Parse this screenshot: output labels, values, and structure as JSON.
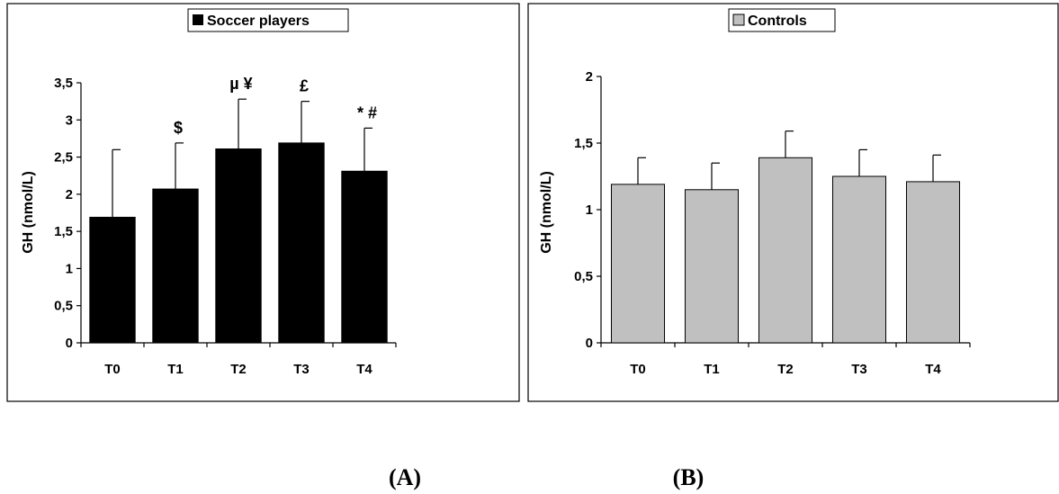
{
  "chart_data": [
    {
      "type": "bar",
      "legend": "Soccer players",
      "legend_position": "top-center",
      "ylabel": "GH (nmol/L)",
      "xlabel": "",
      "categories": [
        "T0",
        "T1",
        "T2",
        "T3",
        "T4"
      ],
      "values": [
        1.69,
        2.07,
        2.61,
        2.69,
        2.31
      ],
      "error_upper": [
        2.6,
        2.69,
        3.28,
        3.25,
        2.89
      ],
      "annotations": [
        "",
        "$",
        "µ ¥",
        "£",
        "* #"
      ],
      "ylim": [
        0,
        3.5
      ],
      "yticks": [
        "0",
        "0,5",
        "1",
        "1,5",
        "2",
        "2,5",
        "3",
        "3,5"
      ],
      "bar_color": "#000000",
      "grid": false,
      "panel_label": "(A)"
    },
    {
      "type": "bar",
      "legend": "Controls",
      "legend_position": "top-center",
      "ylabel": "GH (nmol/L)",
      "xlabel": "",
      "categories": [
        "T0",
        "T1",
        "T2",
        "T3",
        "T4"
      ],
      "values": [
        1.19,
        1.15,
        1.39,
        1.25,
        1.21
      ],
      "error_upper": [
        1.39,
        1.35,
        1.59,
        1.45,
        1.41
      ],
      "annotations": [
        "",
        "",
        "",
        "",
        ""
      ],
      "ylim": [
        0,
        2
      ],
      "yticks": [
        "0",
        "0,5",
        "1",
        "1,5",
        "2"
      ],
      "bar_color": "#c0c0c0",
      "grid": false,
      "panel_label": "(B)"
    }
  ]
}
